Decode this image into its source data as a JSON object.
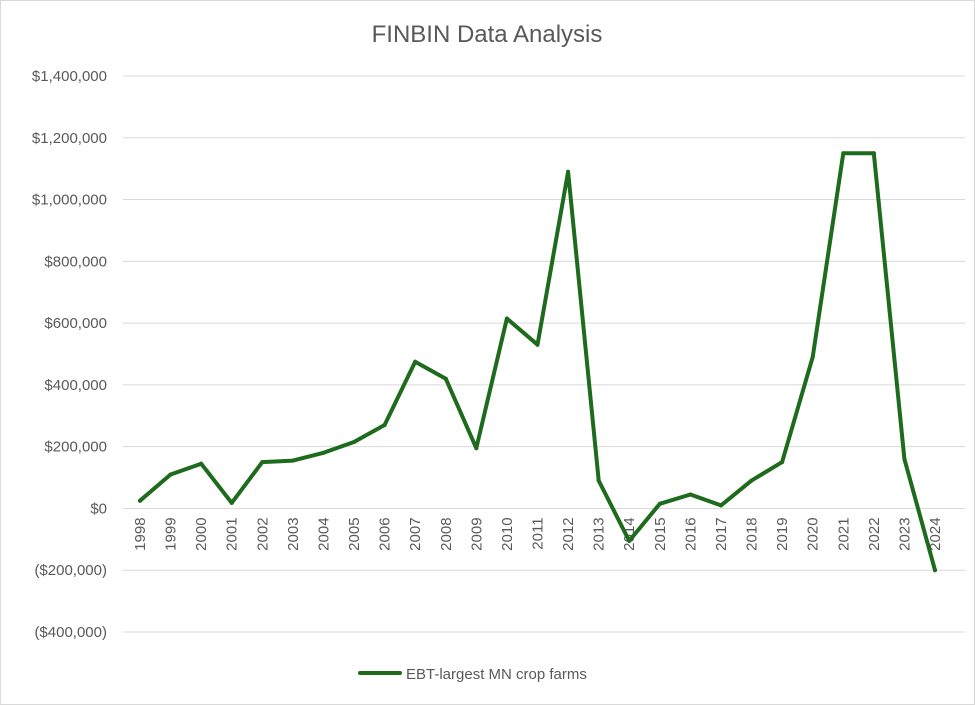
{
  "chart_data": {
    "type": "line",
    "title": "FINBIN Data Analysis",
    "xlabel": "",
    "ylabel": "",
    "ylim": [
      -400000,
      1400000
    ],
    "yticks": [
      1400000,
      1200000,
      1000000,
      800000,
      600000,
      400000,
      200000,
      0,
      -200000,
      -400000
    ],
    "ytick_labels": [
      "$1,400,000",
      "$1,200,000",
      "$1,000,000",
      "$800,000",
      "$600,000",
      "$400,000",
      "$200,000",
      "$0",
      "($200,000)",
      "($400,000)"
    ],
    "grid": true,
    "legend_position": "bottom",
    "categories": [
      "1998",
      "1999",
      "2000",
      "2001",
      "2002",
      "2003",
      "2004",
      "2005",
      "2006",
      "2007",
      "2008",
      "2009",
      "2010",
      "2011",
      "2012",
      "2013",
      "2014",
      "2015",
      "2016",
      "2017",
      "2018",
      "2019",
      "2020",
      "2021",
      "2022",
      "2023",
      "2024"
    ],
    "series": [
      {
        "name": "EBT-largest MN crop farms",
        "color": "#1e6b1e",
        "values": [
          25000,
          110000,
          145000,
          18000,
          150000,
          155000,
          180000,
          215000,
          270000,
          475000,
          420000,
          195000,
          615000,
          530000,
          1090000,
          90000,
          -105000,
          15000,
          45000,
          10000,
          90000,
          150000,
          490000,
          1150000,
          1150000,
          160000,
          -200000
        ]
      }
    ]
  }
}
